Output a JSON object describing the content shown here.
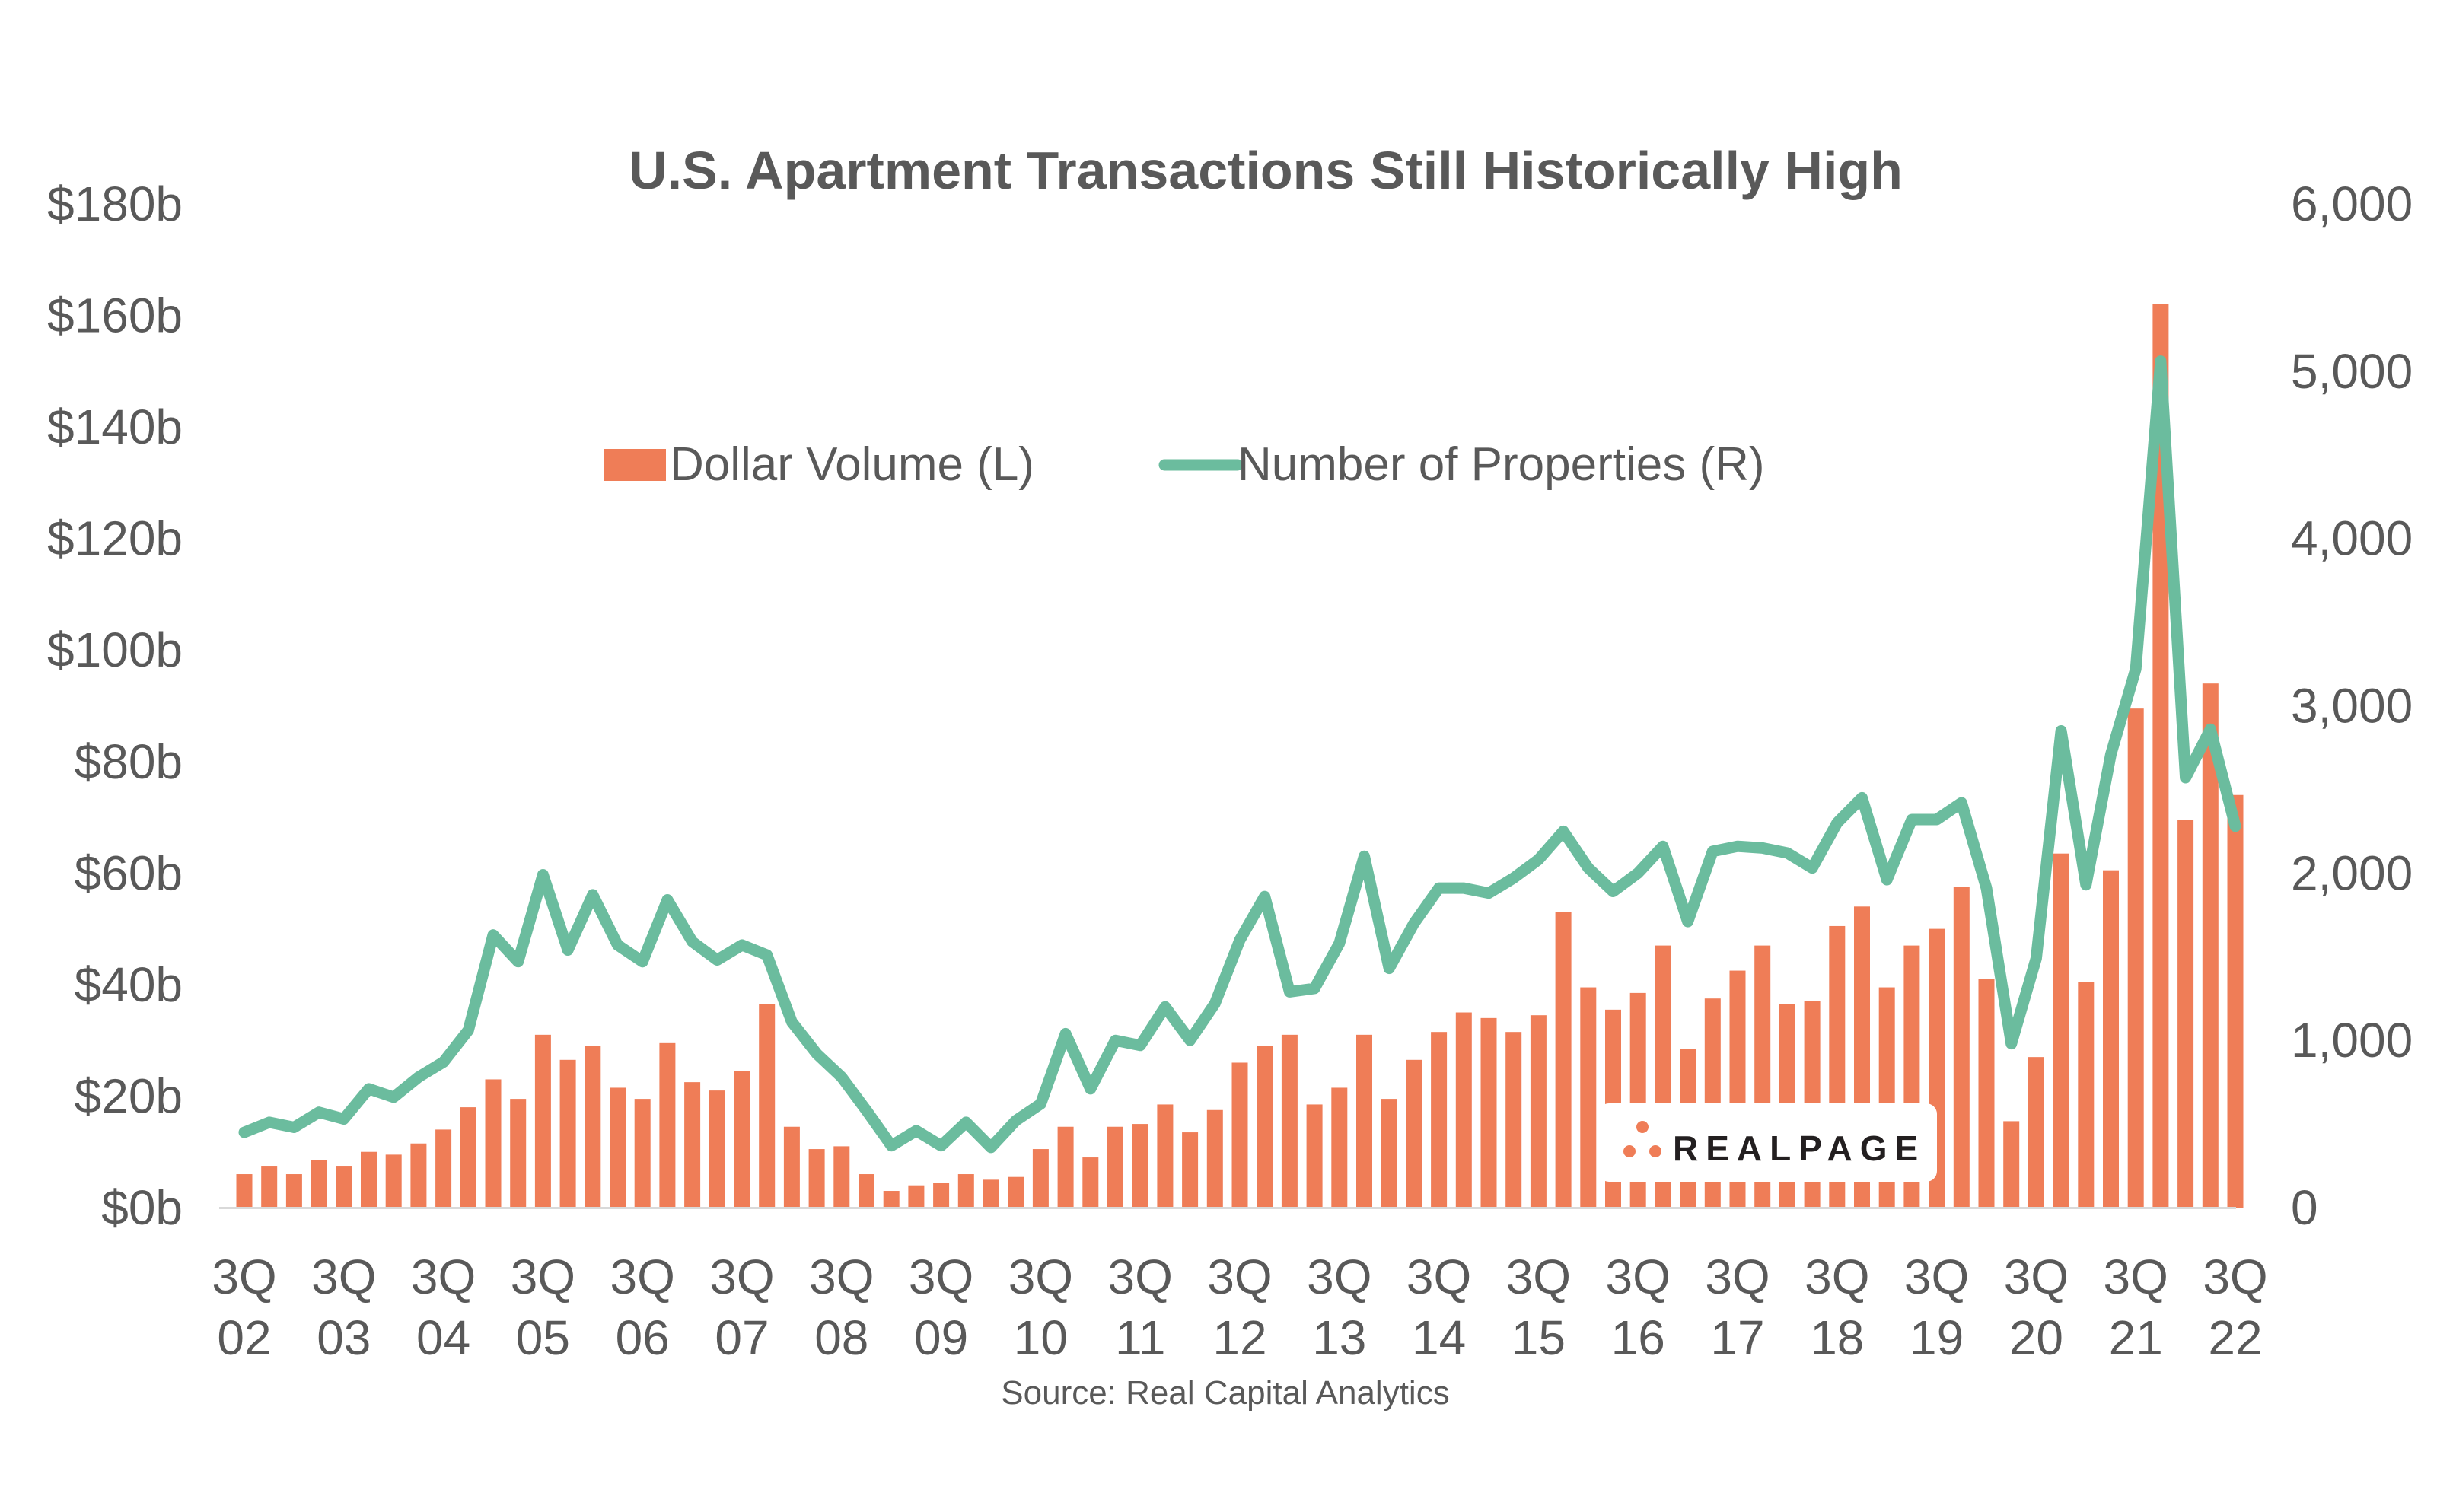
{
  "chart_data": {
    "type": "bar",
    "title": "U.S. Apartment Transactions Still Historically High",
    "source": "Source: Real Capital Analytics",
    "logo_text": "REALPAGE",
    "legend_placement": "top-center",
    "grid": false,
    "colors": {
      "bar": "#ef7d57",
      "line": "#6bbc9e",
      "text": "#595959"
    },
    "y_left": {
      "ylim": [
        0,
        180
      ],
      "tick_values": [
        0,
        20,
        40,
        60,
        80,
        100,
        120,
        140,
        160,
        180
      ],
      "tick_labels": [
        "$0b",
        "$20b",
        "$40b",
        "$60b",
        "$80b",
        "$100b",
        "$120b",
        "$140b",
        "$160b",
        "$180b"
      ]
    },
    "y_right": {
      "ylim": [
        0,
        6000
      ],
      "tick_values": [
        0,
        1000,
        2000,
        3000,
        4000,
        5000,
        6000
      ],
      "tick_labels": [
        "0",
        "1,000",
        "2,000",
        "3,000",
        "4,000",
        "5,000",
        "6,000"
      ]
    },
    "x_ticks": [
      {
        "line1": "3Q",
        "line2": "02"
      },
      {
        "line1": "3Q",
        "line2": "03"
      },
      {
        "line1": "3Q",
        "line2": "04"
      },
      {
        "line1": "3Q",
        "line2": "05"
      },
      {
        "line1": "3Q",
        "line2": "06"
      },
      {
        "line1": "3Q",
        "line2": "07"
      },
      {
        "line1": "3Q",
        "line2": "08"
      },
      {
        "line1": "3Q",
        "line2": "09"
      },
      {
        "line1": "3Q",
        "line2": "10"
      },
      {
        "line1": "3Q",
        "line2": "11"
      },
      {
        "line1": "3Q",
        "line2": "12"
      },
      {
        "line1": "3Q",
        "line2": "13"
      },
      {
        "line1": "3Q",
        "line2": "14"
      },
      {
        "line1": "3Q",
        "line2": "15"
      },
      {
        "line1": "3Q",
        "line2": "16"
      },
      {
        "line1": "3Q",
        "line2": "17"
      },
      {
        "line1": "3Q",
        "line2": "18"
      },
      {
        "line1": "3Q",
        "line2": "19"
      },
      {
        "line1": "3Q",
        "line2": "20"
      },
      {
        "line1": "3Q",
        "line2": "21"
      },
      {
        "line1": "3Q",
        "line2": "22"
      }
    ],
    "series": [
      {
        "name": "Dollar Volume (L)",
        "type": "bar",
        "axis": "left",
        "values": [
          6,
          7.5,
          6,
          8.5,
          7.5,
          10,
          9.5,
          11.5,
          14,
          18,
          23,
          19.5,
          31,
          26.5,
          29,
          21.5,
          19.5,
          29.5,
          22.5,
          21,
          24.5,
          36.5,
          14.5,
          10.5,
          11,
          6,
          3,
          4,
          4.5,
          6,
          5,
          5.5,
          10.5,
          14.5,
          9,
          14.5,
          15,
          18.5,
          13.5,
          17.5,
          26,
          29,
          31,
          18.5,
          21.5,
          31,
          19.5,
          26.5,
          31.5,
          35,
          34,
          31.5,
          34.5,
          53,
          39.5,
          35.5,
          38.5,
          47,
          28.5,
          37.5,
          42.5,
          47,
          36.5,
          37,
          50.5,
          54,
          39.5,
          47,
          50,
          57.5,
          41,
          15.5,
          27,
          63.5,
          40.5,
          60.5,
          89.5,
          162,
          69.5,
          94,
          74
        ]
      },
      {
        "name": "Number of Properties (R)",
        "type": "line",
        "axis": "right",
        "values": [
          450,
          510,
          480,
          570,
          530,
          710,
          660,
          780,
          870,
          1060,
          1630,
          1470,
          1990,
          1540,
          1870,
          1570,
          1470,
          1840,
          1590,
          1480,
          1570,
          1510,
          1110,
          920,
          780,
          580,
          370,
          460,
          370,
          510,
          360,
          520,
          620,
          1040,
          710,
          1000,
          970,
          1200,
          1000,
          1220,
          1600,
          1860,
          1290,
          1310,
          1580,
          2100,
          1430,
          1700,
          1910,
          1910,
          1880,
          1970,
          2080,
          2250,
          2030,
          1890,
          2000,
          2160,
          1710,
          2130,
          2160,
          2150,
          2120,
          2030,
          2300,
          2450,
          1960,
          2320,
          2320,
          2420,
          1910,
          980,
          1490,
          2850,
          1930,
          2710,
          3220,
          5060,
          2570,
          2860,
          2280
        ]
      }
    ]
  }
}
